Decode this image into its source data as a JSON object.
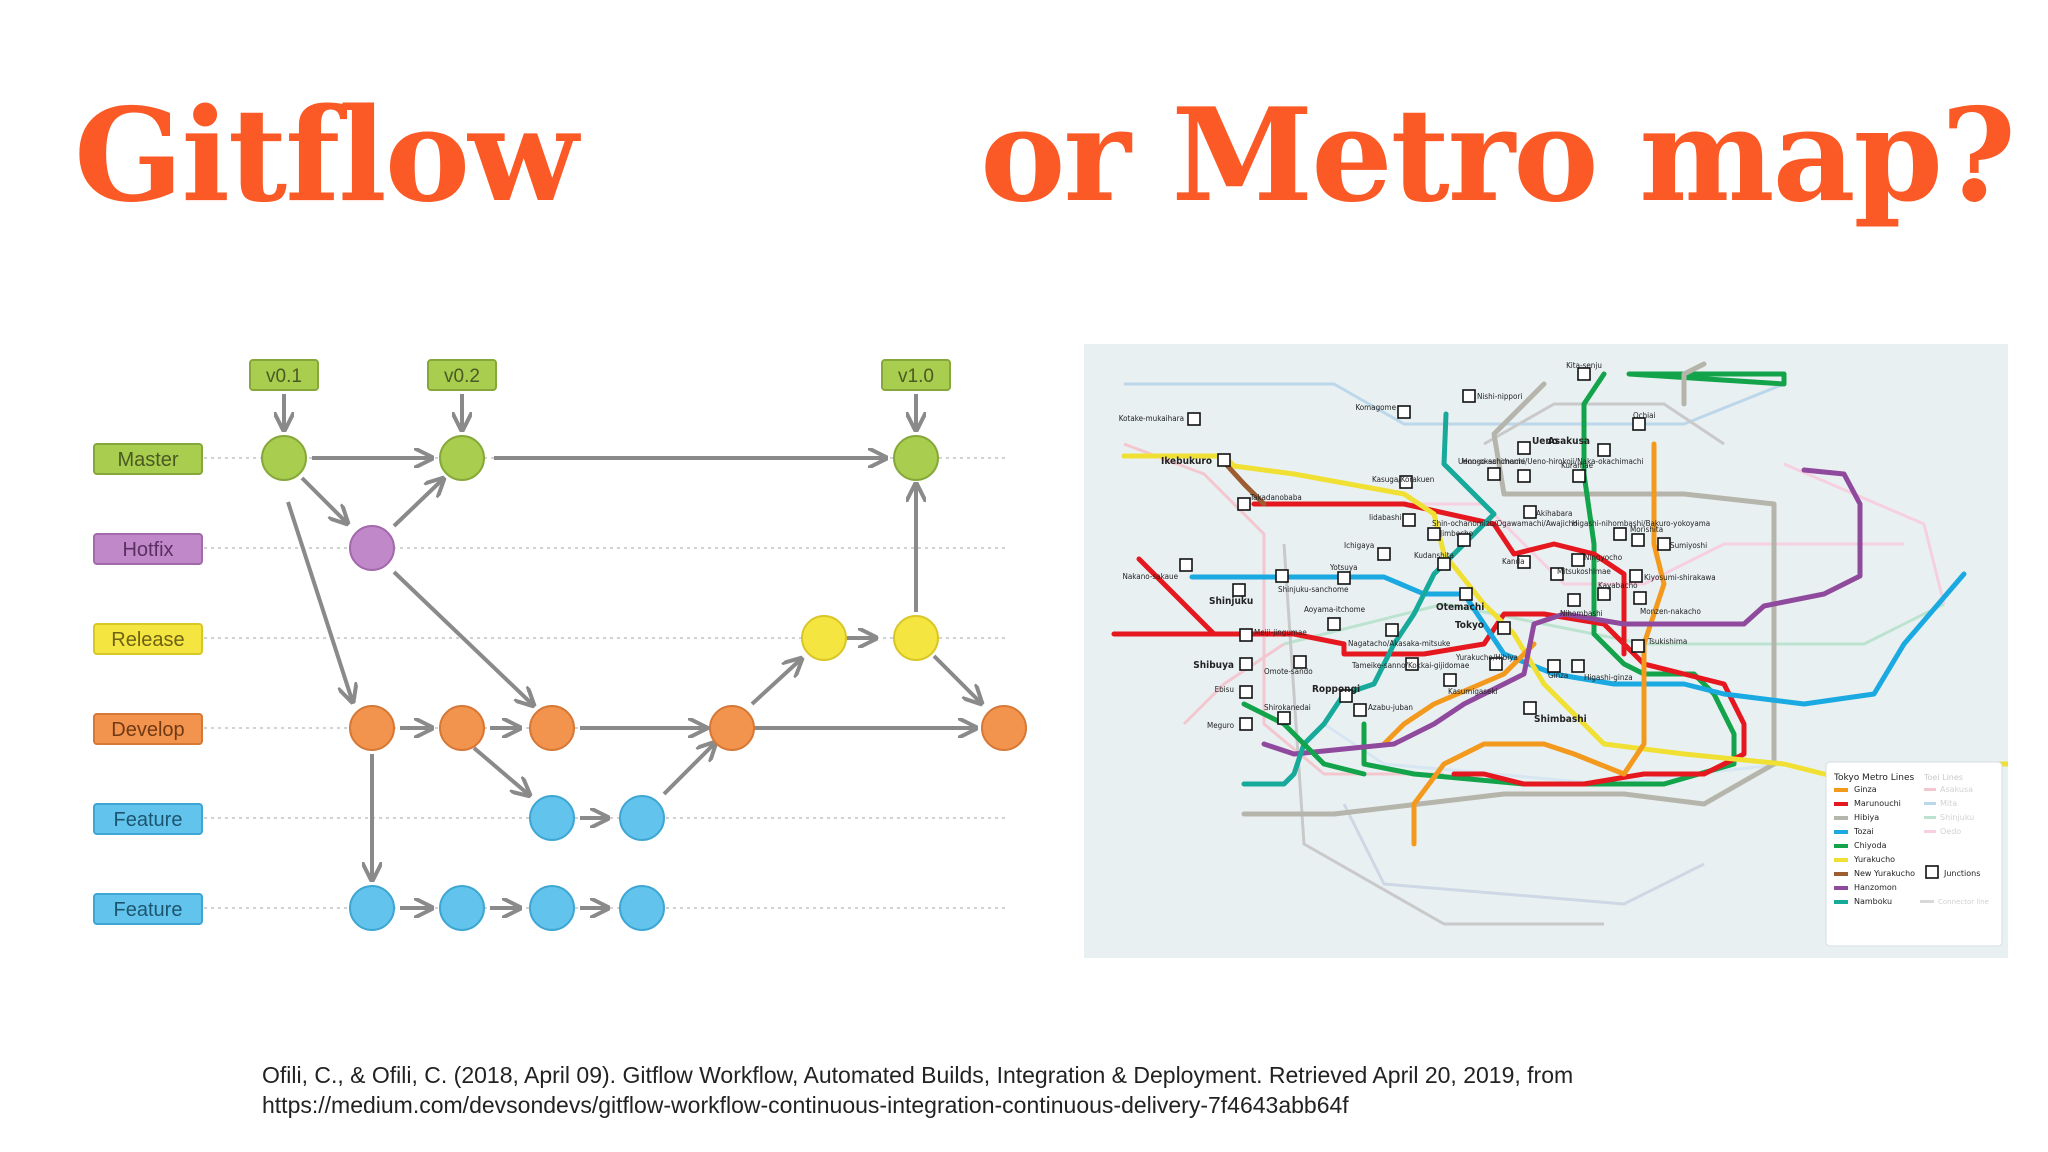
{
  "slide": {
    "title_left": "Gitflow",
    "title_right": "or Metro map?",
    "accent_color": "#fb5a26"
  },
  "gitflow": {
    "tags": [
      "v0.1",
      "v0.2",
      "v1.0"
    ],
    "branches": [
      {
        "label": "Master",
        "color": "#a8cd4f",
        "node_color": "#a8cd4f"
      },
      {
        "label": "Hotfix",
        "color": "#c088c8",
        "node_color": "#c088c8"
      },
      {
        "label": "Release",
        "color": "#f5e540",
        "node_color": "#f5e540"
      },
      {
        "label": "Develop",
        "color": "#f3944e",
        "node_color": "#f3944e"
      },
      {
        "label": "Feature",
        "color": "#62c4ec",
        "node_color": "#62c4ec"
      },
      {
        "label": "Feature",
        "color": "#62c4ec",
        "node_color": "#62c4ec"
      }
    ]
  },
  "metro_map": {
    "stations": [
      "Kita-senju",
      "Nishi-nippori",
      "Komagome",
      "Kotake-mukaihara",
      "Ochiai",
      "Ueno",
      "Asakusa",
      "Ikebukuro",
      "Hongo-sanchome",
      "Ueno-okachimachi/Ueno-hirokoji/Naka-okachimachi",
      "Kuramae",
      "Kasuga/Korakuen",
      "Takadanobaba",
      "Akihabara",
      "Iidabashi",
      "Jimbocho",
      "Shin-ochanomizu/Ogawamachi/Awajicho",
      "Higashi-nihombashi/Bakuro-yokoyama",
      "Morishita",
      "Ichigaya",
      "Ningyocho",
      "Sumiyoshi",
      "Nakano-sakaue",
      "Kudanshita",
      "Kanda",
      "Mitsukoshimae",
      "Kiyosumi-shirakawa",
      "Yotsuya",
      "Shinjuku-sanchome",
      "Kayabacho",
      "Shinjuku",
      "Otemachi",
      "Nihombashi",
      "Monzen-nakacho",
      "Aoyama-itchome",
      "Tokyo",
      "Meiji-jingumae",
      "Tsukishima",
      "Nagatacho/Akasaka-mitsuke",
      "Yurakucho/Hibiya",
      "Shibuya",
      "Tameike-sanno/Kokkai-gijidomae",
      "Ginza",
      "Higashi-ginza",
      "Omote-sando",
      "Kasumigaseki",
      "Ebisu",
      "Roppongi",
      "Shirokanedai",
      "Azabu-juban",
      "Shimbashi",
      "Meguro"
    ],
    "legend": {
      "title": "Tokyo Metro Lines",
      "lines": [
        {
          "name": "Ginza",
          "color": "#f39a1e"
        },
        {
          "name": "Marunouchi",
          "color": "#e5171f"
        },
        {
          "name": "Hibiya",
          "color": "#b5b5ac"
        },
        {
          "name": "Tozai",
          "color": "#1aa9e1"
        },
        {
          "name": "Chiyoda",
          "color": "#13a34b"
        },
        {
          "name": "Yurakucho",
          "color": "#f0e034"
        },
        {
          "name": "New Yurakucho",
          "color": "#9c5e31"
        },
        {
          "name": "Hanzomon",
          "color": "#8f4a9e"
        },
        {
          "name": "Namboku",
          "color": "#17a99a"
        }
      ],
      "toei_title": "Toei Lines",
      "toei_lines": [
        "Asakusa",
        "Mita",
        "Shinjuku",
        "Oedo"
      ],
      "junctions_label": "Junctions",
      "connector_label": "Connector line"
    }
  },
  "citation": {
    "line1": "Ofili, C., & Ofili, C. (2018, April 09). Gitflow Workflow, Automated Builds, Integration & Deployment. Retrieved April 20, 2019, from",
    "line2": "https://medium.com/devsondevs/gitflow-workflow-continuous-integration-continuous-delivery-7f4643abb64f"
  }
}
